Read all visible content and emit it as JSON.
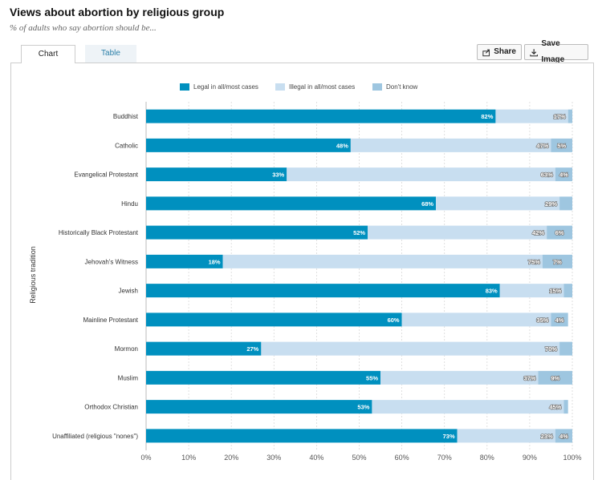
{
  "header": {
    "title": "Views about abortion by religious group",
    "subtitle": "% of adults who say abortion should be..."
  },
  "tabs": [
    {
      "label": "Chart",
      "active": true
    },
    {
      "label": "Table",
      "active": false
    }
  ],
  "toolbar": {
    "share_label": "Share",
    "save_label": "Save Image"
  },
  "colors": {
    "legal": "#0090bf",
    "illegal": "#c8def0",
    "dontknow": "#9ec6e0"
  },
  "chart_data": {
    "type": "bar",
    "orientation": "horizontal",
    "stacked": true,
    "ylabel": "Religious tradition",
    "xlim": [
      0,
      100
    ],
    "xticks": [
      "0%",
      "10%",
      "20%",
      "30%",
      "40%",
      "50%",
      "60%",
      "70%",
      "80%",
      "90%",
      "100%"
    ],
    "legend_position": "top",
    "categories": [
      "Buddhist",
      "Catholic",
      "Evangelical Protestant",
      "Hindu",
      "Historically Black Protestant",
      "Jehovah's Witness",
      "Jewish",
      "Mainline Protestant",
      "Mormon",
      "Muslim",
      "Orthodox Christian",
      "Unaffiliated (religious \"nones\")"
    ],
    "series": [
      {
        "name": "Legal in all/most cases",
        "values": [
          82,
          48,
          33,
          68,
          52,
          18,
          83,
          60,
          27,
          55,
          53,
          73
        ]
      },
      {
        "name": "Illegal in all/most cases",
        "values": [
          17,
          47,
          63,
          29,
          42,
          75,
          15,
          35,
          70,
          37,
          45,
          23
        ]
      },
      {
        "name": "Don't know",
        "values": [
          1,
          5,
          4,
          3,
          6,
          7,
          2,
          4,
          3,
          9,
          1,
          4
        ]
      }
    ],
    "data_labels": [
      [
        "82%",
        "17%",
        ""
      ],
      [
        "48%",
        "47%",
        "5%"
      ],
      [
        "33%",
        "63%",
        "4%"
      ],
      [
        "68%",
        "29%",
        ""
      ],
      [
        "52%",
        "42%",
        "6%"
      ],
      [
        "18%",
        "75%",
        "7%"
      ],
      [
        "83%",
        "15%",
        ""
      ],
      [
        "60%",
        "35%",
        "4%"
      ],
      [
        "27%",
        "70%",
        ""
      ],
      [
        "55%",
        "37%",
        "9%"
      ],
      [
        "53%",
        "45%",
        ""
      ],
      [
        "73%",
        "23%",
        "4%"
      ]
    ]
  }
}
